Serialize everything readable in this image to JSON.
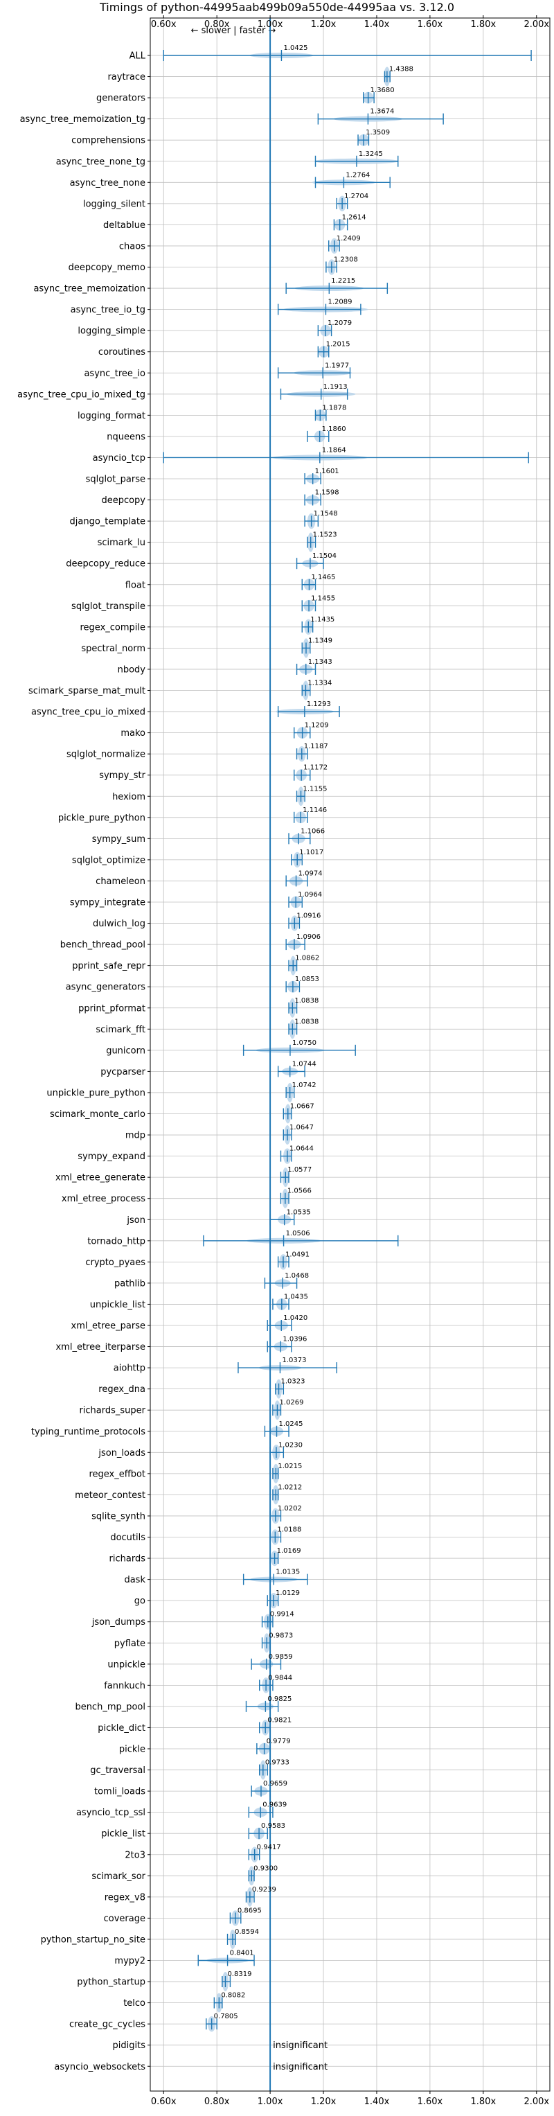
{
  "chart_data": {
    "type": "violin",
    "title": "Timings of python-44995aab499b09a550de-44995aa vs. 3.12.0",
    "annotation": "← slower | faster →",
    "xlim": [
      0.55,
      2.05
    ],
    "ticks": [
      {
        "value": 0.6,
        "label": "0.60x"
      },
      {
        "value": 0.8,
        "label": "0.80x"
      },
      {
        "value": 1.0,
        "label": "1.00x"
      },
      {
        "value": 1.2,
        "label": "1.20x"
      },
      {
        "value": 1.4,
        "label": "1.40x"
      },
      {
        "value": 1.6,
        "label": "1.60x"
      },
      {
        "value": 1.8,
        "label": "1.80x"
      },
      {
        "value": 2.0,
        "label": "2.00x"
      }
    ],
    "grid": true,
    "reference_line": 1.0,
    "colors": {
      "violin": "#b9d4ea",
      "line": "#1f77b4",
      "median": "#d62728",
      "grid": "#bfbfbf"
    },
    "benchmarks": [
      {
        "name": "ALL",
        "value": 1.0425,
        "label": "1.0425",
        "min": 0.6,
        "max": 1.98,
        "spread": 0.12
      },
      {
        "name": "raytrace",
        "value": 1.4388,
        "label": "1.4388",
        "min": 1.43,
        "max": 1.45,
        "spread": 0.012
      },
      {
        "name": "generators",
        "value": 1.368,
        "label": "1.3680",
        "min": 1.35,
        "max": 1.39,
        "spread": 0.02
      },
      {
        "name": "async_tree_memoization_tg",
        "value": 1.3674,
        "label": "1.3674",
        "min": 1.18,
        "max": 1.65,
        "spread": 0.13
      },
      {
        "name": "comprehensions",
        "value": 1.3509,
        "label": "1.3509",
        "min": 1.33,
        "max": 1.37,
        "spread": 0.02
      },
      {
        "name": "async_tree_none_tg",
        "value": 1.3245,
        "label": "1.3245",
        "min": 1.17,
        "max": 1.48,
        "spread": 0.16
      },
      {
        "name": "async_tree_none",
        "value": 1.2764,
        "label": "1.2764",
        "min": 1.17,
        "max": 1.45,
        "spread": 0.12
      },
      {
        "name": "logging_silent",
        "value": 1.2704,
        "label": "1.2704",
        "min": 1.25,
        "max": 1.29,
        "spread": 0.015
      },
      {
        "name": "deltablue",
        "value": 1.2614,
        "label": "1.2614",
        "min": 1.24,
        "max": 1.29,
        "spread": 0.02
      },
      {
        "name": "chaos",
        "value": 1.2409,
        "label": "1.2409",
        "min": 1.22,
        "max": 1.26,
        "spread": 0.015
      },
      {
        "name": "deepcopy_memo",
        "value": 1.2308,
        "label": "1.2308",
        "min": 1.21,
        "max": 1.25,
        "spread": 0.015
      },
      {
        "name": "async_tree_memoization",
        "value": 1.2215,
        "label": "1.2215",
        "min": 1.06,
        "max": 1.44,
        "spread": 0.13
      },
      {
        "name": "async_tree_io_tg",
        "value": 1.2089,
        "label": "1.2089",
        "min": 1.03,
        "max": 1.34,
        "spread": 0.16
      },
      {
        "name": "logging_simple",
        "value": 1.2079,
        "label": "1.2079",
        "min": 1.18,
        "max": 1.23,
        "spread": 0.02
      },
      {
        "name": "coroutines",
        "value": 1.2015,
        "label": "1.2015",
        "min": 1.18,
        "max": 1.22,
        "spread": 0.02
      },
      {
        "name": "async_tree_io",
        "value": 1.1977,
        "label": "1.1977",
        "min": 1.03,
        "max": 1.3,
        "spread": 0.11
      },
      {
        "name": "async_tree_cpu_io_mixed_tg",
        "value": 1.1913,
        "label": "1.1913",
        "min": 1.04,
        "max": 1.29,
        "spread": 0.13
      },
      {
        "name": "logging_format",
        "value": 1.1878,
        "label": "1.1878",
        "min": 1.17,
        "max": 1.21,
        "spread": 0.02
      },
      {
        "name": "nqueens",
        "value": 1.186,
        "label": "1.1860",
        "min": 1.14,
        "max": 1.22,
        "spread": 0.02
      },
      {
        "name": "asyncio_tcp",
        "value": 1.1864,
        "label": "1.1864",
        "min": 0.6,
        "max": 1.97,
        "spread": 0.18
      },
      {
        "name": "sqlglot_parse",
        "value": 1.1601,
        "label": "1.1601",
        "min": 1.13,
        "max": 1.19,
        "spread": 0.025
      },
      {
        "name": "deepcopy",
        "value": 1.1598,
        "label": "1.1598",
        "min": 1.13,
        "max": 1.19,
        "spread": 0.025
      },
      {
        "name": "django_template",
        "value": 1.1548,
        "label": "1.1548",
        "min": 1.13,
        "max": 1.18,
        "spread": 0.015
      },
      {
        "name": "scimark_lu",
        "value": 1.1523,
        "label": "1.1523",
        "min": 1.14,
        "max": 1.17,
        "spread": 0.012
      },
      {
        "name": "deepcopy_reduce",
        "value": 1.1504,
        "label": "1.1504",
        "min": 1.1,
        "max": 1.2,
        "spread": 0.03
      },
      {
        "name": "float",
        "value": 1.1465,
        "label": "1.1465",
        "min": 1.12,
        "max": 1.17,
        "spread": 0.02
      },
      {
        "name": "sqlglot_transpile",
        "value": 1.1455,
        "label": "1.1455",
        "min": 1.12,
        "max": 1.17,
        "spread": 0.02
      },
      {
        "name": "regex_compile",
        "value": 1.1435,
        "label": "1.1435",
        "min": 1.12,
        "max": 1.16,
        "spread": 0.015
      },
      {
        "name": "spectral_norm",
        "value": 1.1349,
        "label": "1.1349",
        "min": 1.12,
        "max": 1.15,
        "spread": 0.012
      },
      {
        "name": "nbody",
        "value": 1.1343,
        "label": "1.1343",
        "min": 1.1,
        "max": 1.17,
        "spread": 0.025
      },
      {
        "name": "scimark_sparse_mat_mult",
        "value": 1.1334,
        "label": "1.1334",
        "min": 1.12,
        "max": 1.15,
        "spread": 0.012
      },
      {
        "name": "async_tree_cpu_io_mixed",
        "value": 1.1293,
        "label": "1.1293",
        "min": 1.03,
        "max": 1.26,
        "spread": 0.11
      },
      {
        "name": "mako",
        "value": 1.1209,
        "label": "1.1209",
        "min": 1.09,
        "max": 1.15,
        "spread": 0.02
      },
      {
        "name": "sqlglot_normalize",
        "value": 1.1187,
        "label": "1.1187",
        "min": 1.1,
        "max": 1.14,
        "spread": 0.015
      },
      {
        "name": "sympy_str",
        "value": 1.1172,
        "label": "1.1172",
        "min": 1.09,
        "max": 1.15,
        "spread": 0.02
      },
      {
        "name": "hexiom",
        "value": 1.1155,
        "label": "1.1155",
        "min": 1.1,
        "max": 1.13,
        "spread": 0.012
      },
      {
        "name": "pickle_pure_python",
        "value": 1.1146,
        "label": "1.1146",
        "min": 1.09,
        "max": 1.14,
        "spread": 0.02
      },
      {
        "name": "sympy_sum",
        "value": 1.1066,
        "label": "1.1066",
        "min": 1.07,
        "max": 1.15,
        "spread": 0.025
      },
      {
        "name": "sqlglot_optimize",
        "value": 1.1017,
        "label": "1.1017",
        "min": 1.08,
        "max": 1.12,
        "spread": 0.015
      },
      {
        "name": "chameleon",
        "value": 1.0974,
        "label": "1.0974",
        "min": 1.06,
        "max": 1.14,
        "spread": 0.025
      },
      {
        "name": "sympy_integrate",
        "value": 1.0964,
        "label": "1.0964",
        "min": 1.07,
        "max": 1.12,
        "spread": 0.02
      },
      {
        "name": "dulwich_log",
        "value": 1.0916,
        "label": "1.0916",
        "min": 1.07,
        "max": 1.11,
        "spread": 0.015
      },
      {
        "name": "bench_thread_pool",
        "value": 1.0906,
        "label": "1.0906",
        "min": 1.06,
        "max": 1.13,
        "spread": 0.025
      },
      {
        "name": "pprint_safe_repr",
        "value": 1.0862,
        "label": "1.0862",
        "min": 1.07,
        "max": 1.1,
        "spread": 0.012
      },
      {
        "name": "async_generators",
        "value": 1.0853,
        "label": "1.0853",
        "min": 1.06,
        "max": 1.11,
        "spread": 0.02
      },
      {
        "name": "pprint_pformat",
        "value": 1.0838,
        "label": "1.0838",
        "min": 1.07,
        "max": 1.1,
        "spread": 0.012
      },
      {
        "name": "scimark_fft",
        "value": 1.0838,
        "label": "1.0838",
        "min": 1.07,
        "max": 1.1,
        "spread": 0.012
      },
      {
        "name": "gunicorn",
        "value": 1.075,
        "label": "1.0750",
        "min": 0.9,
        "max": 1.32,
        "spread": 0.13
      },
      {
        "name": "pycparser",
        "value": 1.0744,
        "label": "1.0744",
        "min": 1.03,
        "max": 1.13,
        "spread": 0.03
      },
      {
        "name": "unpickle_pure_python",
        "value": 1.0742,
        "label": "1.0742",
        "min": 1.06,
        "max": 1.09,
        "spread": 0.012
      },
      {
        "name": "scimark_monte_carlo",
        "value": 1.0667,
        "label": "1.0667",
        "min": 1.05,
        "max": 1.08,
        "spread": 0.012
      },
      {
        "name": "mdp",
        "value": 1.0647,
        "label": "1.0647",
        "min": 1.05,
        "max": 1.08,
        "spread": 0.012
      },
      {
        "name": "sympy_expand",
        "value": 1.0644,
        "label": "1.0644",
        "min": 1.04,
        "max": 1.08,
        "spread": 0.015
      },
      {
        "name": "xml_etree_generate",
        "value": 1.0577,
        "label": "1.0577",
        "min": 1.04,
        "max": 1.07,
        "spread": 0.012
      },
      {
        "name": "xml_etree_process",
        "value": 1.0566,
        "label": "1.0566",
        "min": 1.04,
        "max": 1.07,
        "spread": 0.012
      },
      {
        "name": "json",
        "value": 1.0535,
        "label": "1.0535",
        "min": 1.0,
        "max": 1.09,
        "spread": 0.025
      },
      {
        "name": "tornado_http",
        "value": 1.0506,
        "label": "1.0506",
        "min": 0.75,
        "max": 1.48,
        "spread": 0.14
      },
      {
        "name": "crypto_pyaes",
        "value": 1.0491,
        "label": "1.0491",
        "min": 1.03,
        "max": 1.07,
        "spread": 0.015
      },
      {
        "name": "pathlib",
        "value": 1.0468,
        "label": "1.0468",
        "min": 0.98,
        "max": 1.1,
        "spread": 0.03
      },
      {
        "name": "unpickle_list",
        "value": 1.0435,
        "label": "1.0435",
        "min": 1.01,
        "max": 1.07,
        "spread": 0.02
      },
      {
        "name": "xml_etree_parse",
        "value": 1.042,
        "label": "1.0420",
        "min": 0.99,
        "max": 1.08,
        "spread": 0.025
      },
      {
        "name": "xml_etree_iterparse",
        "value": 1.0396,
        "label": "1.0396",
        "min": 0.99,
        "max": 1.08,
        "spread": 0.025
      },
      {
        "name": "aiohttp",
        "value": 1.0373,
        "label": "1.0373",
        "min": 0.88,
        "max": 1.25,
        "spread": 0.08
      },
      {
        "name": "regex_dna",
        "value": 1.0323,
        "label": "1.0323",
        "min": 1.02,
        "max": 1.05,
        "spread": 0.012
      },
      {
        "name": "richards_super",
        "value": 1.0269,
        "label": "1.0269",
        "min": 1.01,
        "max": 1.04,
        "spread": 0.012
      },
      {
        "name": "typing_runtime_protocols",
        "value": 1.0245,
        "label": "1.0245",
        "min": 0.98,
        "max": 1.07,
        "spread": 0.025
      },
      {
        "name": "json_loads",
        "value": 1.023,
        "label": "1.0230",
        "min": 1.0,
        "max": 1.05,
        "spread": 0.015
      },
      {
        "name": "regex_effbot",
        "value": 1.0215,
        "label": "1.0215",
        "min": 1.01,
        "max": 1.03,
        "spread": 0.012
      },
      {
        "name": "meteor_contest",
        "value": 1.0212,
        "label": "1.0212",
        "min": 1.01,
        "max": 1.03,
        "spread": 0.012
      },
      {
        "name": "sqlite_synth",
        "value": 1.0202,
        "label": "1.0202",
        "min": 1.0,
        "max": 1.04,
        "spread": 0.015
      },
      {
        "name": "docutils",
        "value": 1.0188,
        "label": "1.0188",
        "min": 1.0,
        "max": 1.04,
        "spread": 0.015
      },
      {
        "name": "richards",
        "value": 1.0169,
        "label": "1.0169",
        "min": 1.0,
        "max": 1.03,
        "spread": 0.015
      },
      {
        "name": "dask",
        "value": 1.0135,
        "label": "1.0135",
        "min": 0.9,
        "max": 1.14,
        "spread": 0.09
      },
      {
        "name": "go",
        "value": 1.0129,
        "label": "1.0129",
        "min": 0.99,
        "max": 1.03,
        "spread": 0.015
      },
      {
        "name": "json_dumps",
        "value": 0.9914,
        "label": "0.9914",
        "min": 0.97,
        "max": 1.01,
        "spread": 0.015
      },
      {
        "name": "pyflate",
        "value": 0.9873,
        "label": "0.9873",
        "min": 0.97,
        "max": 1.0,
        "spread": 0.012
      },
      {
        "name": "unpickle",
        "value": 0.9859,
        "label": "0.9859",
        "min": 0.93,
        "max": 1.04,
        "spread": 0.025
      },
      {
        "name": "fannkuch",
        "value": 0.9844,
        "label": "0.9844",
        "min": 0.96,
        "max": 1.01,
        "spread": 0.015
      },
      {
        "name": "bench_mp_pool",
        "value": 0.9825,
        "label": "0.9825",
        "min": 0.91,
        "max": 1.03,
        "spread": 0.03
      },
      {
        "name": "pickle_dict",
        "value": 0.9821,
        "label": "0.9821",
        "min": 0.96,
        "max": 1.0,
        "spread": 0.015
      },
      {
        "name": "pickle",
        "value": 0.9779,
        "label": "0.9779",
        "min": 0.95,
        "max": 1.0,
        "spread": 0.02
      },
      {
        "name": "gc_traversal",
        "value": 0.9733,
        "label": "0.9733",
        "min": 0.96,
        "max": 0.99,
        "spread": 0.012
      },
      {
        "name": "tomli_loads",
        "value": 0.9659,
        "label": "0.9659",
        "min": 0.93,
        "max": 1.0,
        "spread": 0.025
      },
      {
        "name": "asyncio_tcp_ssl",
        "value": 0.9639,
        "label": "0.9639",
        "min": 0.92,
        "max": 1.01,
        "spread": 0.025
      },
      {
        "name": "pickle_list",
        "value": 0.9583,
        "label": "0.9583",
        "min": 0.92,
        "max": 0.99,
        "spread": 0.02
      },
      {
        "name": "2to3",
        "value": 0.9417,
        "label": "0.9417",
        "min": 0.92,
        "max": 0.96,
        "spread": 0.015
      },
      {
        "name": "scimark_sor",
        "value": 0.93,
        "label": "0.9300",
        "min": 0.92,
        "max": 0.94,
        "spread": 0.012
      },
      {
        "name": "regex_v8",
        "value": 0.9239,
        "label": "0.9239",
        "min": 0.91,
        "max": 0.94,
        "spread": 0.012
      },
      {
        "name": "coverage",
        "value": 0.8695,
        "label": "0.8695",
        "min": 0.85,
        "max": 0.89,
        "spread": 0.015
      },
      {
        "name": "python_startup_no_site",
        "value": 0.8594,
        "label": "0.8594",
        "min": 0.84,
        "max": 0.87,
        "spread": 0.012
      },
      {
        "name": "mypy2",
        "value": 0.8401,
        "label": "0.8401",
        "min": 0.73,
        "max": 0.94,
        "spread": 0.08
      },
      {
        "name": "python_startup",
        "value": 0.8319,
        "label": "0.8319",
        "min": 0.82,
        "max": 0.85,
        "spread": 0.012
      },
      {
        "name": "telco",
        "value": 0.8082,
        "label": "0.8082",
        "min": 0.79,
        "max": 0.82,
        "spread": 0.012
      },
      {
        "name": "create_gc_cycles",
        "value": 0.7805,
        "label": "0.7805",
        "min": 0.76,
        "max": 0.8,
        "spread": 0.015
      },
      {
        "name": "pidigits",
        "value": null,
        "label": "insignificant"
      },
      {
        "name": "asyncio_websockets",
        "value": null,
        "label": "insignificant"
      }
    ]
  }
}
